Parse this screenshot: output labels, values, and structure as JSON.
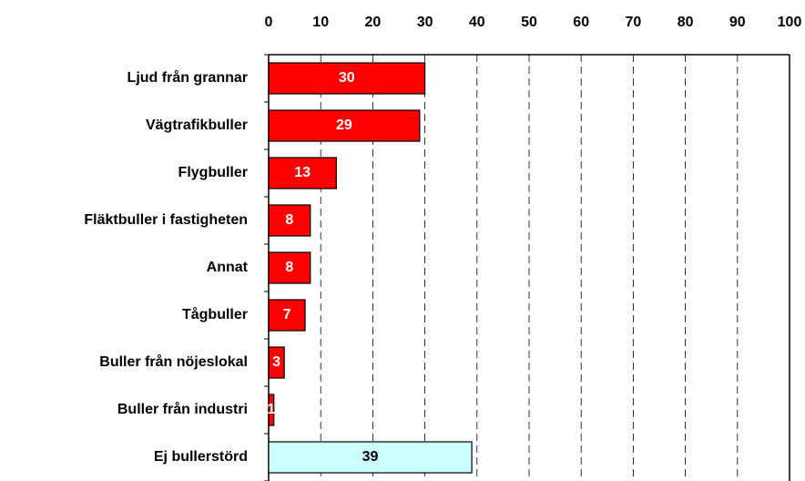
{
  "chart_data": {
    "type": "bar",
    "orientation": "horizontal",
    "categories": [
      "Ljud från grannar",
      "Vägtrafikbuller",
      "Flygbuller",
      "Fläktbuller i fastigheten",
      "Annat",
      "Tågbuller",
      "Buller från nöjeslokal",
      "Buller från industri",
      "Ej bullerstörd"
    ],
    "values": [
      30,
      29,
      13,
      8,
      8,
      7,
      3,
      1,
      39
    ],
    "colors": [
      "#ff0000",
      "#ff0000",
      "#ff0000",
      "#ff0000",
      "#ff0000",
      "#ff0000",
      "#ff0000",
      "#ff0000",
      "#ccffff"
    ],
    "xlim": [
      0,
      100
    ],
    "xticks": [
      0,
      10,
      20,
      30,
      40,
      50,
      60,
      70,
      80,
      90,
      100
    ],
    "grid": true
  }
}
